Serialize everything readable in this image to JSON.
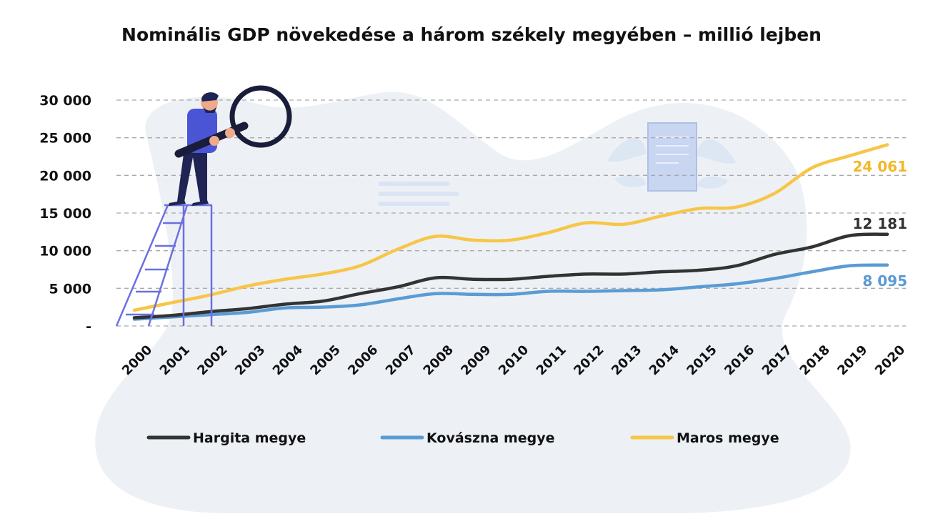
{
  "chart_data": {
    "type": "line",
    "title": "Nominális GDP növekedése a három székely megyében – millió lejben",
    "xlabel": "",
    "ylabel": "",
    "x": [
      "2000",
      "2001",
      "2002",
      "2003",
      "2004",
      "2005",
      "2006",
      "2007",
      "2008",
      "2009",
      "2010",
      "2011",
      "2012",
      "2013",
      "2014",
      "2015",
      "2016",
      "2017",
      "2018",
      "2019",
      "2020"
    ],
    "ylim": [
      0,
      30000
    ],
    "yticks": [
      0,
      5000,
      10000,
      15000,
      20000,
      25000,
      30000
    ],
    "ytick_labels": [
      "-",
      "5 000",
      "10 000",
      "15 000",
      "20 000",
      "25 000",
      "30 000"
    ],
    "grid": true,
    "legend_position": "bottom",
    "series": [
      {
        "name": "Hargita megye",
        "color": "#333333",
        "values": [
          1100,
          1400,
          1900,
          2300,
          2900,
          3300,
          4300,
          5200,
          6400,
          6200,
          6200,
          6600,
          6900,
          6900,
          7200,
          7400,
          8000,
          9500,
          10500,
          12000,
          12181
        ],
        "end_label": "12 181"
      },
      {
        "name": "Kovászna megye",
        "color": "#5b9bd5",
        "values": [
          900,
          1200,
          1500,
          1800,
          2400,
          2500,
          2800,
          3600,
          4300,
          4200,
          4200,
          4600,
          4600,
          4700,
          4800,
          5200,
          5600,
          6300,
          7200,
          8000,
          8095
        ],
        "end_label": "8 095"
      },
      {
        "name": "Maros megye",
        "color": "#f7c548",
        "values": [
          2100,
          3100,
          4100,
          5300,
          6200,
          6900,
          8000,
          10200,
          11900,
          11400,
          11400,
          12400,
          13700,
          13500,
          14600,
          15600,
          15800,
          17600,
          21000,
          22600,
          24061
        ],
        "end_label": "24 061"
      }
    ]
  }
}
